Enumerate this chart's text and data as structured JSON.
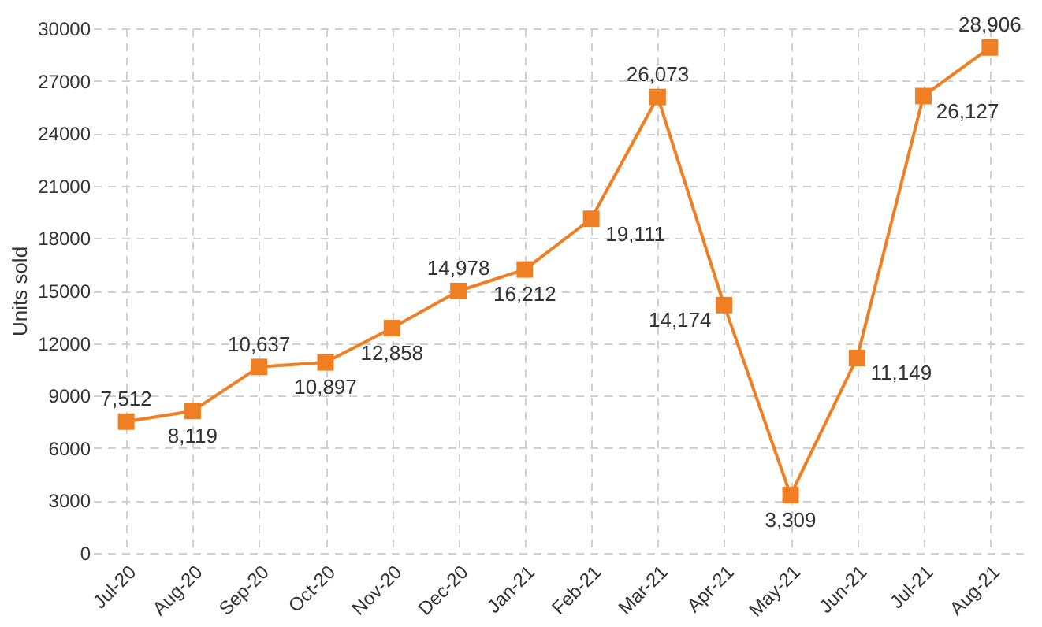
{
  "chart_data": {
    "type": "line",
    "ylabel": "Units sold",
    "categories": [
      "Jul-20",
      "Aug-20",
      "Sep-20",
      "Oct-20",
      "Nov-20",
      "Dec-20",
      "Jan-21",
      "Feb-21",
      "Mar-21",
      "Apr-21",
      "May-21",
      "Jun-21",
      "Jul-21",
      "Aug-21"
    ],
    "series": [
      {
        "color": "#f07f23",
        "values": [
          7512,
          8119,
          10637,
          10897,
          12858,
          14978,
          16212,
          19111,
          26073,
          14174,
          3309,
          11149,
          26127,
          28906
        ],
        "value_labels": [
          "7,512",
          "8,119",
          "10,637",
          "10,897",
          "12,858",
          "14,978",
          "16,212",
          "19,111",
          "26,073",
          "14,174",
          "3,309",
          "11,149",
          "26,127",
          "28,906"
        ]
      }
    ],
    "ylim": [
      0,
      30000
    ],
    "yticks": [
      0,
      3000,
      6000,
      9000,
      12000,
      15000,
      18000,
      21000,
      24000,
      27000,
      30000
    ],
    "grid": true,
    "marker": "square",
    "line_style": "solid"
  }
}
